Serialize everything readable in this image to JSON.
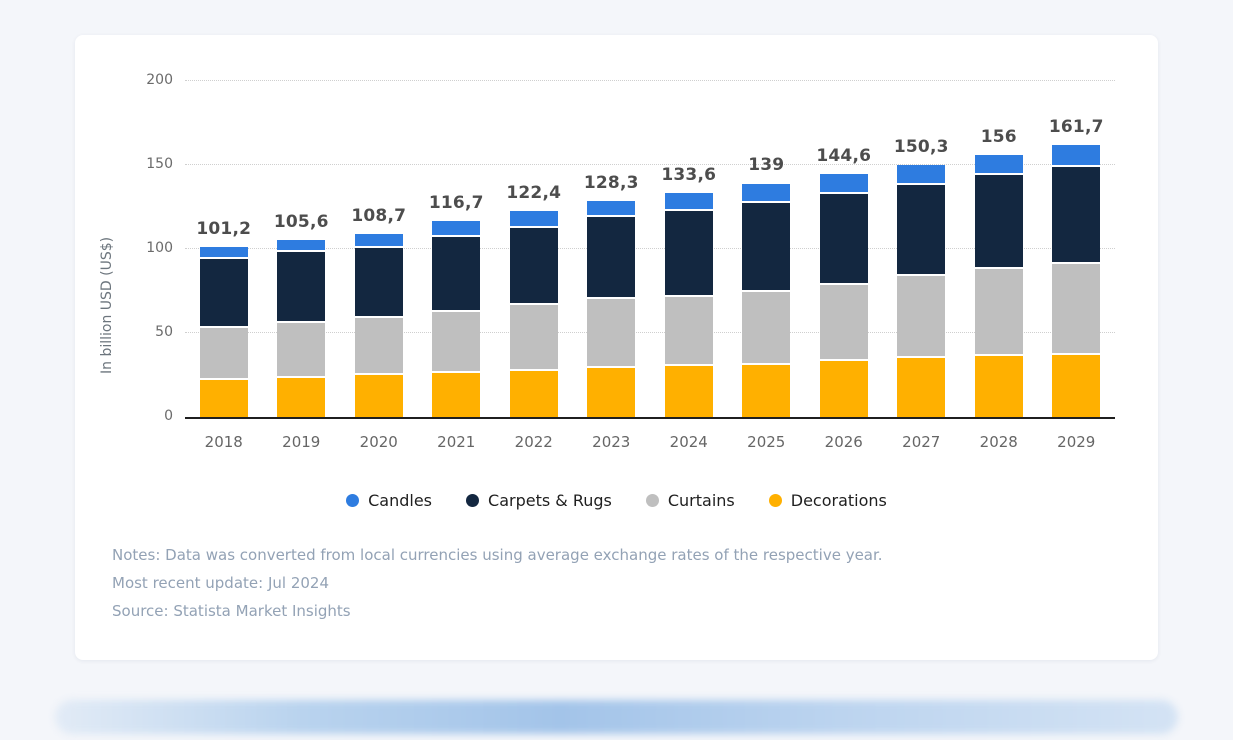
{
  "chart_data": {
    "type": "bar",
    "stacked": true,
    "title": "",
    "ylabel": "In billion USD (US$)",
    "xlabel": "",
    "ylim": [
      0,
      200
    ],
    "yticks": [
      0,
      50,
      100,
      150,
      200
    ],
    "grid": "horizontal-dotted",
    "legend_position": "bottom-center",
    "categories": [
      "2018",
      "2019",
      "2020",
      "2021",
      "2022",
      "2023",
      "2024",
      "2025",
      "2026",
      "2027",
      "2028",
      "2029"
    ],
    "series": [
      {
        "name": "Candles",
        "color": "#2E7CE0",
        "values": [
          7.0,
          7.3,
          7.8,
          9.3,
          9.9,
          9.5,
          11.0,
          11.5,
          12.0,
          12.4,
          12.0,
          12.6
        ]
      },
      {
        "name": "Carpets & Rugs",
        "color": "#132740",
        "values": [
          41.5,
          42.5,
          42.2,
          44.8,
          45.7,
          48.3,
          50.9,
          53.0,
          54.2,
          54.2,
          56.1,
          57.9
        ]
      },
      {
        "name": "Curtains",
        "color": "#BFBFBF",
        "values": [
          30.6,
          32.5,
          33.5,
          36.3,
          39.2,
          41.3,
          41.5,
          43.5,
          45.3,
          48.4,
          51.6,
          54.0
        ]
      },
      {
        "name": "Decorations",
        "color": "#FFB000",
        "values": [
          22.1,
          23.3,
          25.2,
          26.3,
          27.6,
          29.2,
          30.2,
          31.0,
          33.1,
          35.3,
          36.3,
          37.2
        ]
      }
    ],
    "stack_order_bottom_to_top": [
      "Decorations",
      "Curtains",
      "Carpets & Rugs",
      "Candles"
    ],
    "totals": [
      101.2,
      105.6,
      108.7,
      116.7,
      122.4,
      128.3,
      133.6,
      139,
      144.6,
      150.3,
      156,
      161.7
    ],
    "total_labels": [
      "101,2",
      "105,6",
      "108,7",
      "116,7",
      "122,4",
      "128,3",
      "133,6",
      "139",
      "144,6",
      "150,3",
      "156",
      "161,7"
    ]
  },
  "footer": {
    "notes": "Notes: Data was converted from local currencies using average exchange rates of the respective year.",
    "updated": "Most recent update: Jul 2024",
    "source": "Source: Statista Market Insights"
  },
  "style": {
    "separator_color": "#FFFFFF",
    "axis_line_color": "#1F1F1F",
    "gridline_color": "#CFCFCF",
    "total_label_color": "#4D4D4D",
    "tick_label_color": "#6B6B6B",
    "notes_color": "#93A2B5",
    "card_background": "#FFFFFF",
    "page_background": "#F4F6FA"
  }
}
